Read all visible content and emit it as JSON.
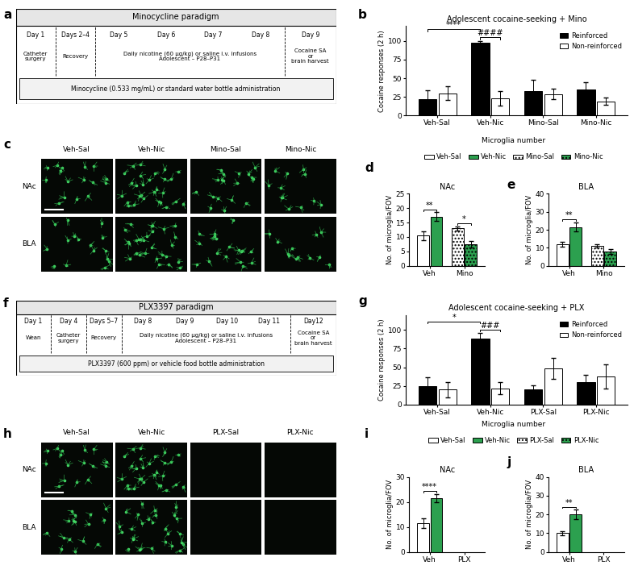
{
  "diagrams": [
    {
      "panel": "a",
      "title": "Minocycline paradigm",
      "days": [
        "Day 1",
        "Days 2–4",
        "Day 5",
        "Day 6",
        "Day 7",
        "Day 8",
        "Day 9"
      ],
      "stages": [
        {
          "text": "Catheter\nsurgery",
          "span": [
            0,
            0
          ]
        },
        {
          "text": "Recovery",
          "span": [
            1,
            1
          ]
        },
        {
          "text": "Daily nicotine (60 μg/kg) or saline i.v. infusions\nAdolescent – P28–P31",
          "span": [
            2,
            5
          ]
        },
        {
          "text": "Cocaine SA\nor\nbrain harvest",
          "span": [
            6,
            6
          ]
        }
      ],
      "administration": "Minocycline (0.533 mg/mL) or standard water bottle administration"
    },
    {
      "panel": "f",
      "title": "PLX3397 paradigm",
      "days": [
        "Day 1",
        "Day 4",
        "Days 5–7",
        "Day 8",
        "Day 9",
        "Day 10",
        "Day 11",
        "Day12"
      ],
      "stages": [
        {
          "text": "Wean",
          "span": [
            0,
            0
          ]
        },
        {
          "text": "Catheter\nsurgery",
          "span": [
            1,
            1
          ]
        },
        {
          "text": "Recovery",
          "span": [
            2,
            2
          ]
        },
        {
          "text": "Daily nicotine (60 μg/kg) or saline i.v. infusions\nAdolescent – P28–P31",
          "span": [
            3,
            6
          ]
        },
        {
          "text": "Cocaine SA\nor\nbrain harvest",
          "span": [
            7,
            7
          ]
        }
      ],
      "administration": "PLX3397 (600 ppm) or vehicle food bottle administration"
    }
  ],
  "micrographs": [
    {
      "panel": "c",
      "columns": [
        "Veh-Sal",
        "Veh-Nic",
        "Mino-Sal",
        "Mino-Nic"
      ],
      "rows": [
        "NAc",
        "BLA"
      ]
    },
    {
      "panel": "h",
      "columns": [
        "Veh-Sal",
        "Veh-Nic",
        "PLX-Sal",
        "PLX-Nic"
      ],
      "rows": [
        "NAc",
        "BLA"
      ]
    }
  ],
  "chart_data": [
    {
      "panel": "b",
      "type": "bar",
      "title": "Adolescent cocaine-seeking + Mino",
      "y_label": "Cocaine responses (2 h)",
      "categories": [
        "Veh-Sal",
        "Veh-Nic",
        "Mino-Sal",
        "Mino-Nic"
      ],
      "series": [
        {
          "name": "Reinforced",
          "color": "#000000",
          "values": [
            22,
            98,
            33,
            35
          ],
          "errors": [
            12,
            2,
            15,
            10
          ]
        },
        {
          "name": "Non-reinforced",
          "color": "#ffffff",
          "values": [
            30,
            23,
            29,
            19
          ],
          "errors": [
            9,
            10,
            7,
            5
          ]
        }
      ],
      "ylim": [
        0,
        120
      ],
      "yticks": [
        0,
        25,
        50,
        75,
        100
      ],
      "legend": "upper right",
      "annotations": [
        "****",
        "####"
      ]
    },
    {
      "panel": "d",
      "type": "bar",
      "subtitle": "Microglia number",
      "title": "NAc",
      "y_label": "No. of microglia/FOV",
      "categories": [
        "Veh",
        "Mino"
      ],
      "series": [
        {
          "name": "Veh-Sal",
          "color": "#ffffff",
          "values": [
            10.5,
            null
          ],
          "errors": [
            1.5,
            null
          ]
        },
        {
          "name": "Veh-Nic",
          "color": "#2ca04f",
          "values": [
            17,
            null
          ],
          "errors": [
            1.5,
            null
          ]
        },
        {
          "name": "Mino-Sal",
          "color": "#ffffff",
          "values": [
            null,
            13
          ],
          "errors": [
            null,
            0.7
          ]
        },
        {
          "name": "Mino-Nic",
          "color": "#2ca04f",
          "values": [
            null,
            7.5
          ],
          "errors": [
            null,
            1.2
          ]
        }
      ],
      "ylim": [
        0,
        25
      ],
      "yticks": [
        0,
        5,
        10,
        15,
        20,
        25
      ],
      "legend": "upper center",
      "annotations": [
        "**",
        "*"
      ]
    },
    {
      "panel": "e",
      "type": "bar",
      "title": "BLA",
      "y_label": "No. of microglia/FOV",
      "categories": [
        "Veh",
        "Mino"
      ],
      "series": [
        {
          "name": "Veh-Sal",
          "color": "#ffffff",
          "values": [
            12,
            null
          ],
          "errors": [
            1.2,
            null
          ]
        },
        {
          "name": "Veh-Nic",
          "color": "#2ca04f",
          "values": [
            21.5,
            null
          ],
          "errors": [
            2.5,
            null
          ]
        },
        {
          "name": "Mino-Sal",
          "color": "#ffffff",
          "values": [
            null,
            11
          ],
          "errors": [
            null,
            1
          ]
        },
        {
          "name": "Mino-Nic",
          "color": "#2ca04f",
          "values": [
            null,
            8
          ],
          "errors": [
            null,
            1.5
          ]
        }
      ],
      "ylim": [
        0,
        40
      ],
      "yticks": [
        0,
        10,
        20,
        30,
        40
      ],
      "annotations": [
        "**"
      ]
    },
    {
      "panel": "g",
      "type": "bar",
      "title": "Adolescent cocaine-seeking + PLX",
      "y_label": "Cocaine responses (2 h)",
      "categories": [
        "Veh-Sal",
        "Veh-Nic",
        "PLX-Sal",
        "PLX-Nic"
      ],
      "series": [
        {
          "name": "Reinforced",
          "color": "#000000",
          "values": [
            25,
            88,
            20,
            30
          ],
          "errors": [
            12,
            8,
            6,
            10
          ]
        },
        {
          "name": "Non-reinforced",
          "color": "#ffffff",
          "values": [
            20,
            22,
            48,
            38
          ],
          "errors": [
            10,
            8,
            14,
            16
          ]
        }
      ],
      "ylim": [
        0,
        120
      ],
      "yticks": [
        0,
        25,
        50,
        75,
        100
      ],
      "legend": "upper right",
      "annotations": [
        "*",
        "###"
      ]
    },
    {
      "panel": "i",
      "type": "bar",
      "subtitle": "Microglia number",
      "title": "NAc",
      "y_label": "No. of microglia/FOV",
      "categories": [
        "Veh",
        "PLX"
      ],
      "series": [
        {
          "name": "Veh-Sal",
          "color": "#ffffff",
          "values": [
            11.5,
            null
          ],
          "errors": [
            2,
            null
          ]
        },
        {
          "name": "Veh-Nic",
          "color": "#2ca04f",
          "values": [
            21.5,
            null
          ],
          "errors": [
            1.7,
            null
          ]
        },
        {
          "name": "PLX-Sal",
          "color": "#ffffff",
          "values": [
            null,
            0
          ],
          "errors": [
            null,
            0
          ]
        },
        {
          "name": "PLX-Nic",
          "color": "#2ca04f",
          "values": [
            null,
            0
          ],
          "errors": [
            null,
            0
          ]
        }
      ],
      "ylim": [
        0,
        30
      ],
      "yticks": [
        0,
        10,
        20,
        30
      ],
      "legend": "upper center",
      "annotations": [
        "****"
      ]
    },
    {
      "panel": "j",
      "type": "bar",
      "title": "BLA",
      "y_label": "No. of microglia/FOV",
      "categories": [
        "Veh",
        "PLX"
      ],
      "series": [
        {
          "name": "Veh-Sal",
          "color": "#ffffff",
          "values": [
            10,
            null
          ],
          "errors": [
            1,
            null
          ]
        },
        {
          "name": "Veh-Nic",
          "color": "#2ca04f",
          "values": [
            20,
            null
          ],
          "errors": [
            2.5,
            null
          ]
        },
        {
          "name": "PLX-Sal",
          "color": "#ffffff",
          "values": [
            null,
            0
          ],
          "errors": [
            null,
            0
          ]
        },
        {
          "name": "PLX-Nic",
          "color": "#2ca04f",
          "values": [
            null,
            0
          ],
          "errors": [
            null,
            0
          ]
        }
      ],
      "ylim": [
        0,
        40
      ],
      "yticks": [
        0,
        10,
        20,
        30,
        40
      ],
      "annotations": [
        "**"
      ]
    }
  ]
}
